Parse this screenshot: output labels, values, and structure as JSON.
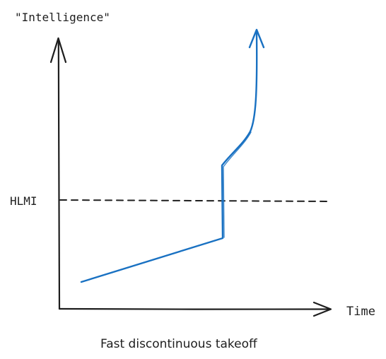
{
  "diagram": {
    "y_axis_label": "\"Intelligence\"",
    "x_axis_label": "Time",
    "reference_line_label": "HLMI",
    "caption": "Fast discontinuous takeoff"
  },
  "colors": {
    "ink": "#1e1e1e",
    "curve": "#1971c2"
  }
}
